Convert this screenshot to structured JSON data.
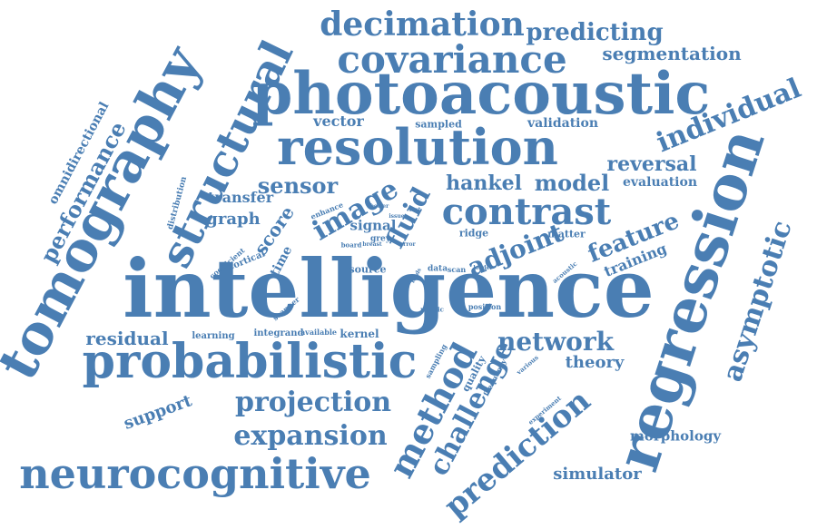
{
  "color": "#4a7eb3",
  "words": [
    "intelligence",
    "regression",
    "tomography",
    "photoacoustic",
    "resolution",
    "probabilistic",
    "neurocognitive",
    "structural",
    "covariance",
    "decimation",
    "predicting",
    "segmentation",
    "contrast",
    "prediction",
    "method",
    "challenge",
    "projection",
    "expansion",
    "network",
    "asymptotic",
    "individual",
    "image",
    "fluid",
    "adjoint",
    "feature",
    "sensor",
    "hankel",
    "model",
    "reversal",
    "evaluation",
    "performance",
    "omnidirectional",
    "residual",
    "support",
    "simulator",
    "morphology",
    "theory",
    "score",
    "graph",
    "transfer",
    "training",
    "vector",
    "sampled",
    "validation",
    "signal",
    "ridge",
    "matter",
    "grey",
    "learning",
    "integrand",
    "available",
    "kernel",
    "source",
    "data",
    "scan",
    "leader",
    "metric",
    "position",
    "sampling",
    "quality",
    "frequency",
    "various",
    "experiment",
    "acoustic",
    "cortical",
    "time",
    "coefficient",
    "scanner",
    "enhance",
    "better",
    "issue",
    "test",
    "board",
    "breast",
    "error",
    "leads",
    "distribution"
  ]
}
